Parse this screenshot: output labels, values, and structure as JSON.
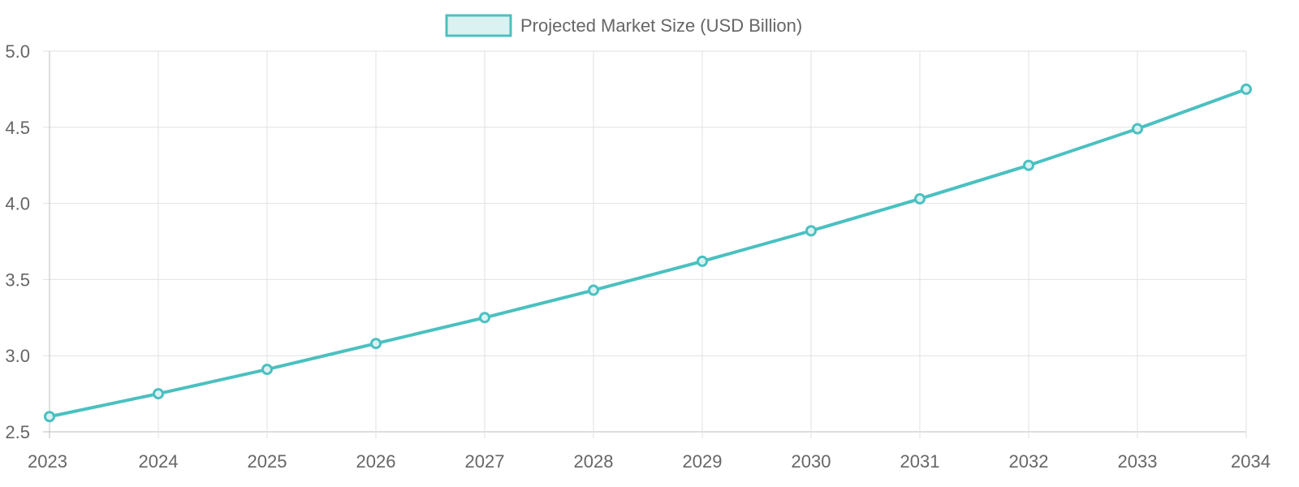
{
  "chart_data": {
    "type": "line",
    "x": [
      "2023",
      "2024",
      "2025",
      "2026",
      "2027",
      "2028",
      "2029",
      "2030",
      "2031",
      "2032",
      "2033",
      "2034"
    ],
    "series": [
      {
        "name": "Projected Market Size (USD Billion)",
        "values": [
          2.6,
          2.75,
          2.91,
          3.08,
          3.25,
          3.43,
          3.62,
          3.82,
          4.03,
          4.25,
          4.49,
          4.75
        ]
      }
    ],
    "ylim": [
      2.5,
      5.0
    ],
    "yticks": [
      "2.5",
      "3.0",
      "3.5",
      "4.0",
      "4.5",
      "5.0"
    ],
    "grid": true,
    "legend_position": "top",
    "colors": {
      "line": "#4bc0c0",
      "fill": "#dbf2f2",
      "grid": "#e1e1e1",
      "text": "#666666"
    }
  }
}
